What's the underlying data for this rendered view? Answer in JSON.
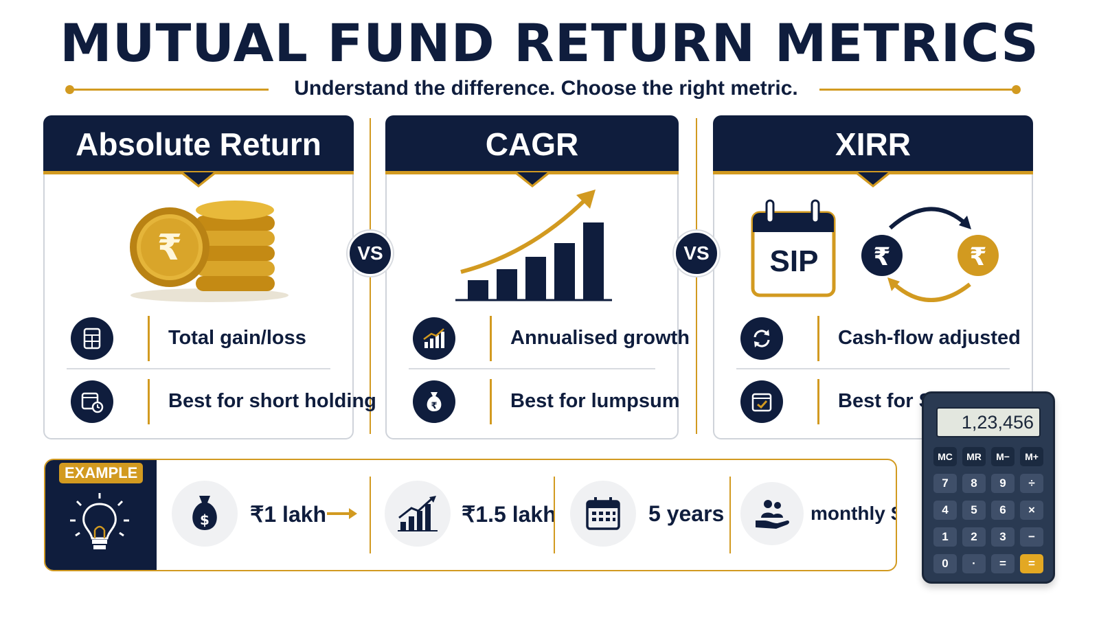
{
  "title": "MUTUAL FUND RETURN METRICS",
  "subtitle": "Understand the difference. Choose the right metric.",
  "colors": {
    "navy": "#0f1d3d",
    "gold": "#d29a20"
  },
  "vs_label": "VS",
  "cards": [
    {
      "title": "Absolute Return",
      "illustration": "coin-stack-rupee",
      "features": [
        {
          "icon": "calculator-icon",
          "text": "Total gain/loss"
        },
        {
          "icon": "calendar-clock-icon",
          "text": "Best for short holding"
        }
      ]
    },
    {
      "title": "CAGR",
      "illustration": "growth-bar-chart-arrow",
      "features": [
        {
          "icon": "bar-chart-icon",
          "text": "Annualised growth"
        },
        {
          "icon": "money-bag-icon",
          "text": "Best for lumpsum"
        }
      ]
    },
    {
      "title": "XIRR",
      "illustration": "sip-calendar-rupee-cycle",
      "sip_label": "SIP",
      "features": [
        {
          "icon": "refresh-icon",
          "text": "Cash-flow adjusted"
        },
        {
          "icon": "calendar-check-icon",
          "text": "Best for SIP"
        }
      ]
    }
  ],
  "example": {
    "badge": "EXAMPLE",
    "items": [
      {
        "icon": "money-bag-dollar-icon",
        "text": "₹1 lakh"
      },
      {
        "icon": "growth-chart-icon",
        "text": "₹1.5 lakh"
      },
      {
        "icon": "calendar-icon",
        "text": "5 years"
      },
      {
        "icon": "hand-people-icon",
        "text": "monthly SIP"
      }
    ]
  },
  "calculator": {
    "display": "1,23,456",
    "keys": [
      "MC",
      "MR",
      "M−",
      "M+",
      "7",
      "8",
      "9",
      "÷",
      "4",
      "5",
      "6",
      "×",
      "1",
      "2",
      "3",
      "−",
      "0",
      "·",
      "=",
      "="
    ]
  }
}
